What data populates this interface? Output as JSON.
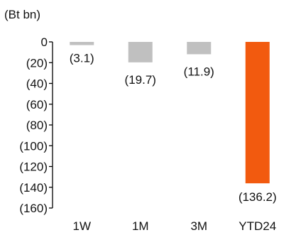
{
  "chart_data": {
    "type": "bar",
    "unit_label": "(Bt bn)",
    "categories": [
      "1W",
      "1M",
      "3M",
      "YTD24"
    ],
    "values": [
      -3.1,
      -19.7,
      -11.9,
      -136.2
    ],
    "data_labels": [
      "(3.1)",
      "(19.7)",
      "(11.9)",
      "(136.2)"
    ],
    "ylim": [
      -160,
      0
    ],
    "ytick_values": [
      0,
      -20,
      -40,
      -60,
      -80,
      -100,
      -120,
      -140,
      -160
    ],
    "ytick_labels": [
      "0",
      "(20)",
      "(40)",
      "(60)",
      "(80)",
      "(100)",
      "(120)",
      "(140)",
      "(160)"
    ],
    "bar_colors": [
      "#c0c0c0",
      "#c0c0c0",
      "#c0c0c0",
      "#f25a0f"
    ],
    "grid": false,
    "legend": "none"
  }
}
